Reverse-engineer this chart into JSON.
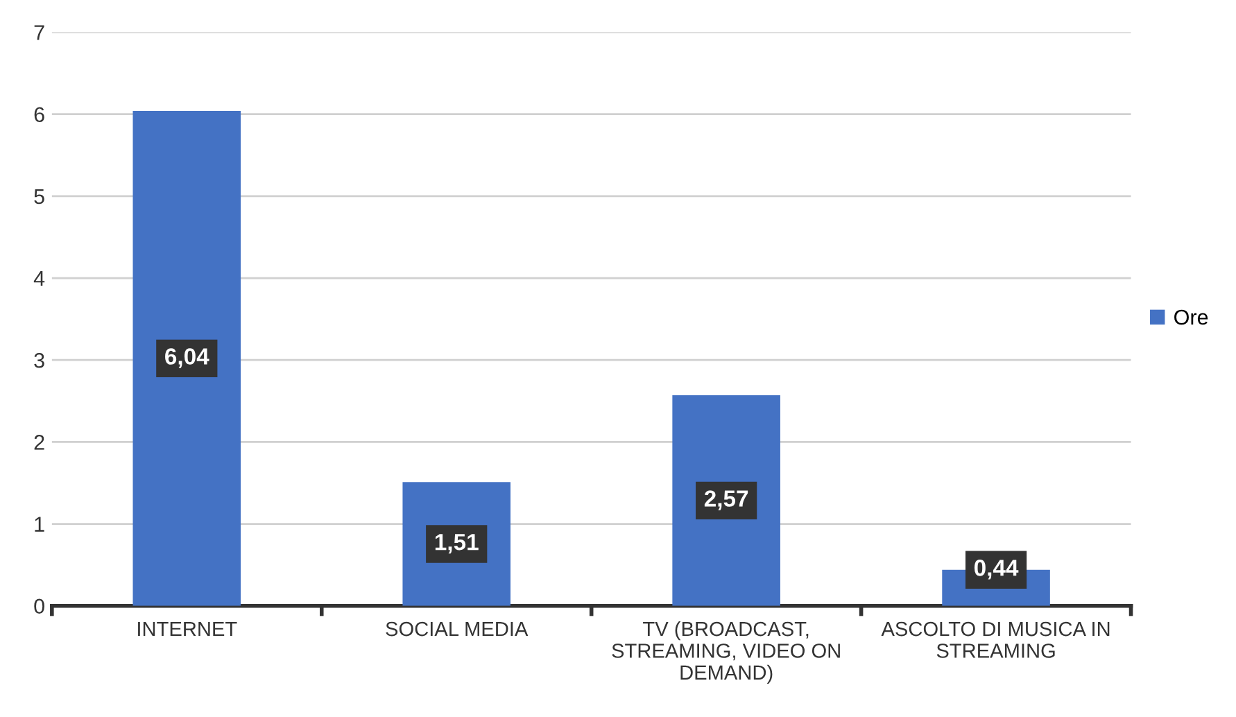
{
  "chart_data": {
    "type": "bar",
    "categories": [
      "INTERNET",
      "SOCIAL MEDIA",
      "TV (BROADCAST, STREAMING, VIDEO ON DEMAND)",
      "ASCOLTO DI MUSICA IN STREAMING"
    ],
    "series": [
      {
        "name": "Ore",
        "color": "#4472c4",
        "values": [
          6.04,
          1.51,
          2.57,
          0.44
        ],
        "value_labels": [
          "6,04",
          "1,51",
          "2,57",
          "0,44"
        ]
      }
    ],
    "ylim": [
      0,
      7
    ],
    "yticks": [
      0,
      1,
      2,
      3,
      4,
      5,
      6,
      7
    ],
    "grid": "y",
    "legend": "right"
  }
}
